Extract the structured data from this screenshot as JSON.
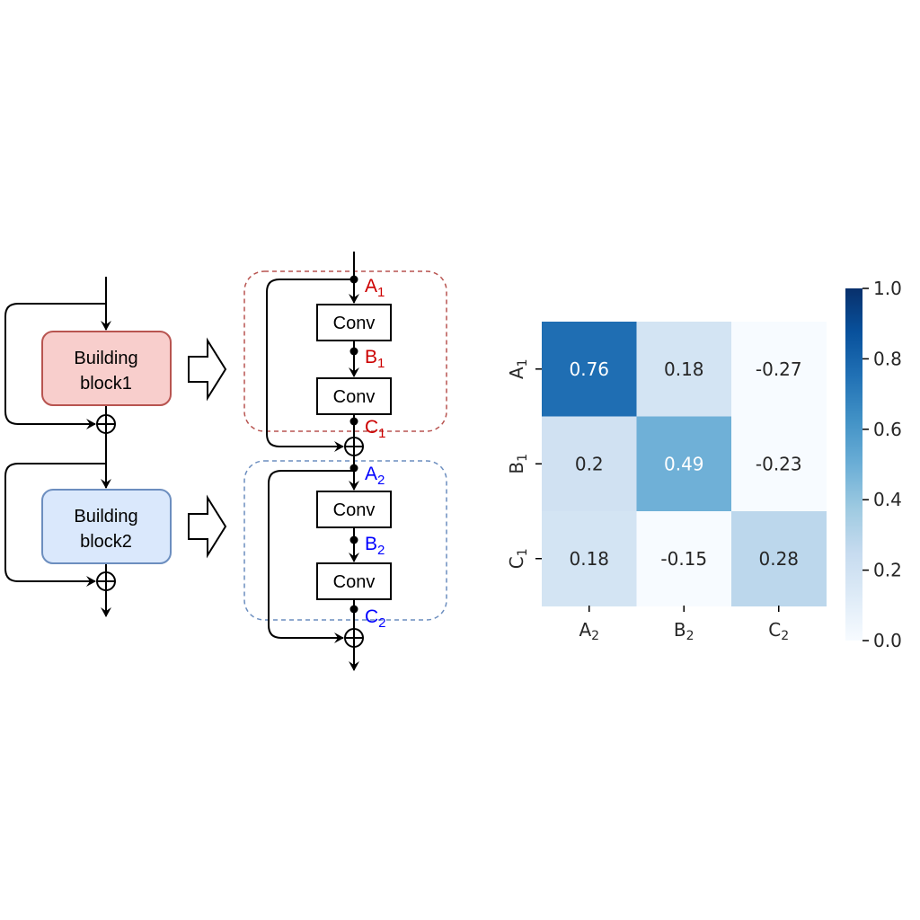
{
  "diagram": {
    "block1_line1": "Building",
    "block1_line2": "block1",
    "block2_line1": "Building",
    "block2_line2": "block2",
    "conv_label": "Conv",
    "points_block1": [
      {
        "letter": "A",
        "sub": "1"
      },
      {
        "letter": "B",
        "sub": "1"
      },
      {
        "letter": "C",
        "sub": "1"
      }
    ],
    "points_block2": [
      {
        "letter": "A",
        "sub": "2"
      },
      {
        "letter": "B",
        "sub": "2"
      },
      {
        "letter": "C",
        "sub": "2"
      }
    ],
    "colors": {
      "block1_fill": "#f8cecc",
      "block1_stroke": "#b85450",
      "block2_fill": "#dae8fc",
      "block2_stroke": "#6c8ebf",
      "label1": "#cc0000",
      "label2": "#0000ff"
    }
  },
  "chart_data": {
    "type": "heatmap",
    "colormap": "Blues",
    "vmin": 0.0,
    "vmax": 1.0,
    "rows": [
      {
        "letter": "A",
        "sub": "1"
      },
      {
        "letter": "B",
        "sub": "1"
      },
      {
        "letter": "C",
        "sub": "1"
      }
    ],
    "cols": [
      {
        "letter": "A",
        "sub": "2"
      },
      {
        "letter": "B",
        "sub": "2"
      },
      {
        "letter": "C",
        "sub": "2"
      }
    ],
    "values": [
      [
        0.76,
        0.18,
        -0.27
      ],
      [
        0.2,
        0.49,
        -0.23
      ],
      [
        0.18,
        -0.15,
        0.28
      ]
    ],
    "colorbar_ticks": [
      "0.0",
      "0.2",
      "0.4",
      "0.6",
      "0.8",
      "1.0"
    ]
  }
}
